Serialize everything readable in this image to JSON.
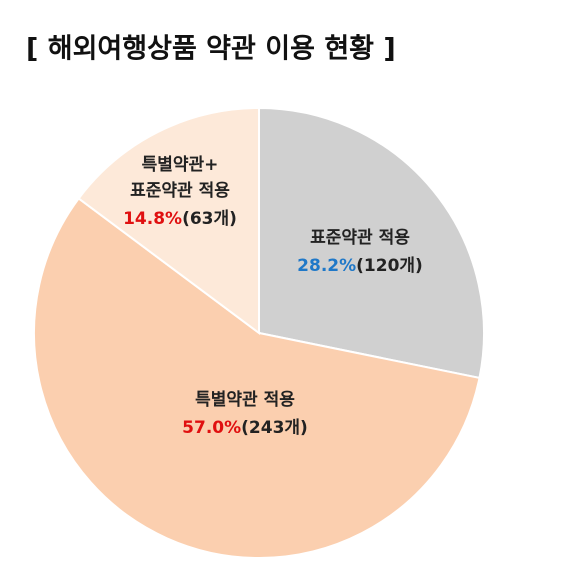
{
  "chart_data": {
    "type": "pie",
    "title": "[ 해외여행상품 약관 이용 현황 ]",
    "categories": [
      "표준약관 적용",
      "특별약관 적용",
      "특별약관+\n표준약관 적용"
    ],
    "values": [
      28.2,
      57.0,
      14.8
    ],
    "value_labels": [
      "28.2%",
      "57.0%",
      "14.8%"
    ],
    "count_labels": [
      "(120개)",
      "(243개)",
      "(63개)"
    ],
    "colors": [
      "#d0d0d0",
      "#fbcfaf",
      "#fde9d9"
    ],
    "value_label_colors": [
      "#1f78c8",
      "#e01010",
      "#e01010"
    ]
  }
}
